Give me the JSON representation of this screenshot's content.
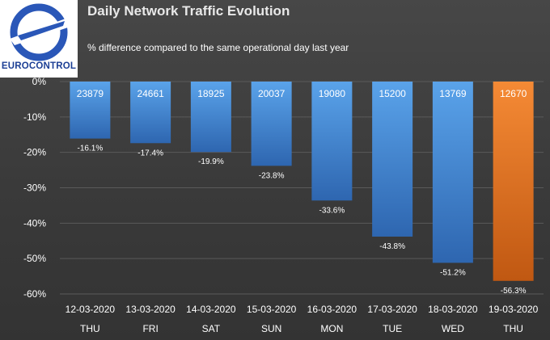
{
  "logo": {
    "text": "EUROCONTROL"
  },
  "header": {
    "title": "Daily Network Traffic Evolution",
    "subtitle": "% difference compared to the same operational day last year"
  },
  "chart_data": {
    "type": "bar",
    "categories": [
      "12-03-2020",
      "13-03-2020",
      "14-03-2020",
      "15-03-2020",
      "16-03-2020",
      "17-03-2020",
      "18-03-2020",
      "19-03-2020"
    ],
    "days": [
      "THU",
      "FRI",
      "SAT",
      "SUN",
      "MON",
      "TUE",
      "WED",
      "THU"
    ],
    "values": [
      -16.1,
      -17.4,
      -19.9,
      -23.8,
      -33.6,
      -43.8,
      -51.2,
      -56.3
    ],
    "value_labels": [
      "-16.1%",
      "-17.4%",
      "-19.9%",
      "-23.8%",
      "-33.6%",
      "-43.8%",
      "-51.2%",
      "-56.3%"
    ],
    "flights": [
      "23879",
      "24661",
      "18925",
      "20037",
      "19080",
      "15200",
      "13769",
      "12670"
    ],
    "yticks": [
      0,
      -10,
      -20,
      -30,
      -40,
      -50,
      -60
    ],
    "ytick_labels": [
      "0%",
      "-10%",
      "-20%",
      "-30%",
      "-40%",
      "-50%",
      "-60%"
    ],
    "ylim": [
      -60,
      0
    ],
    "grid": true,
    "colors": {
      "bar": "#3d7fd0",
      "bar_light": "#5aa3ea",
      "highlight": "#f07f2e",
      "highlight_dark": "#c75c12",
      "grid": "#5a5a5a",
      "text": "#ffffff"
    }
  }
}
